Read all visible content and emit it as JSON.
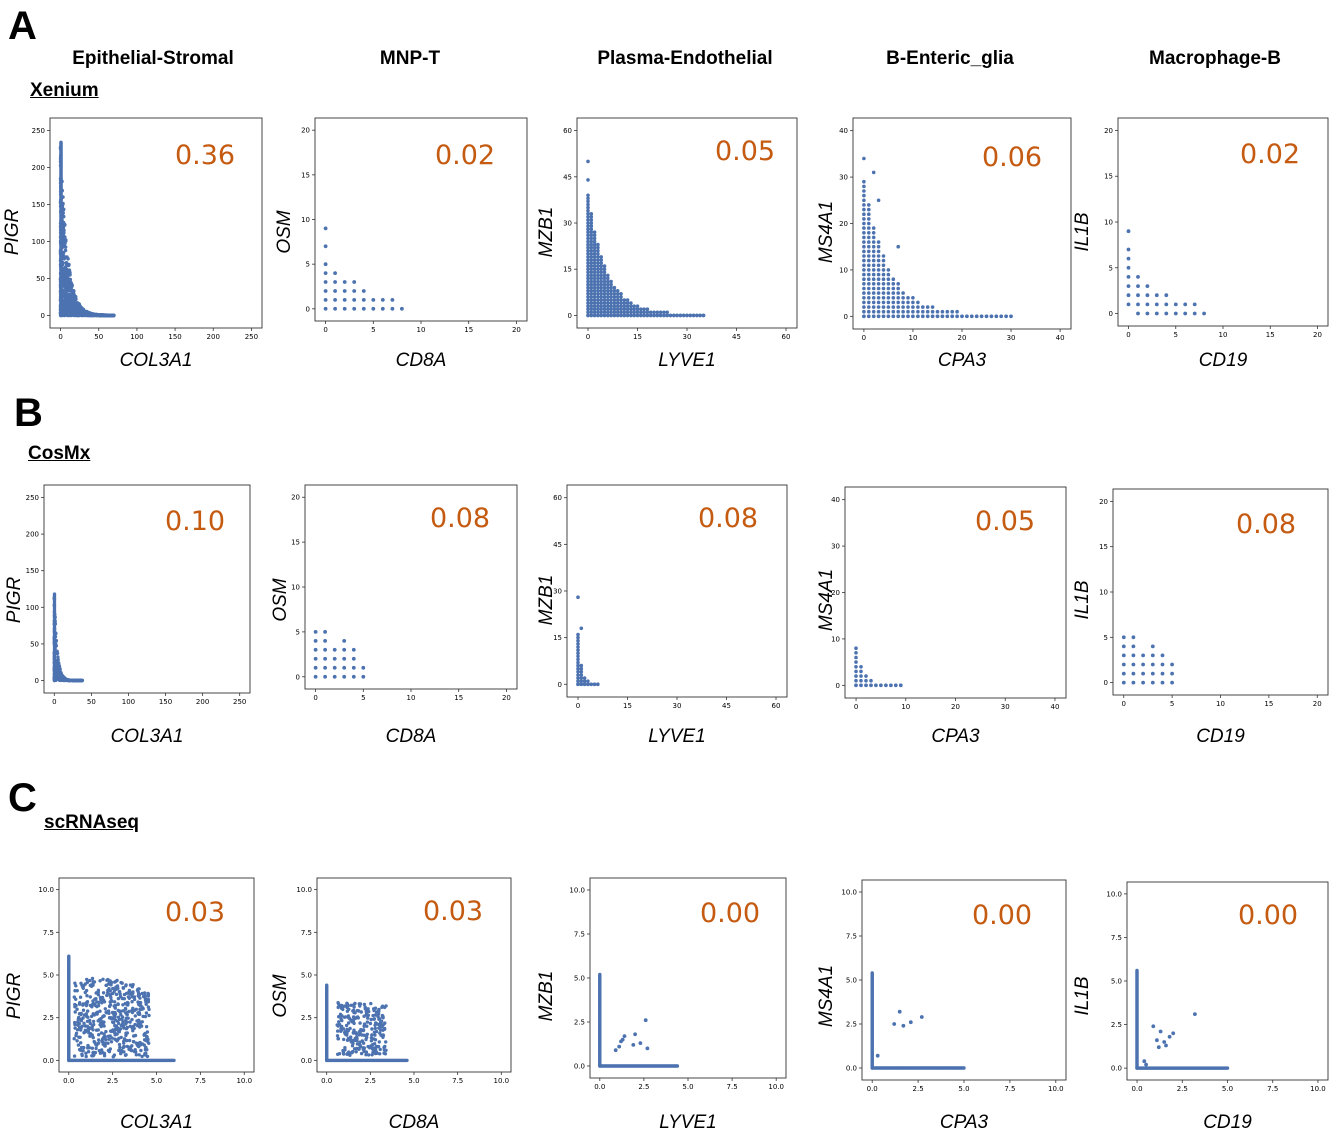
{
  "panel_letters": [
    "A",
    "B",
    "C"
  ],
  "sections": [
    "Xenium",
    "CosMx",
    "scRNAseq"
  ],
  "column_headers": [
    "Epithelial-Stromal",
    "MNP-T",
    "Plasma-Endothelial",
    "B-Enteric_glia",
    "Macrophage-B"
  ],
  "colors": {
    "points": "#4c72b0",
    "correlation": "#c55a11",
    "frame": "#333333"
  },
  "chart_data": [
    {
      "type": "scatter",
      "row": "Xenium",
      "column": "Epithelial-Stromal",
      "xlabel": "COL3A1",
      "ylabel": "PIGR",
      "correlation": "0.36",
      "xlim": [
        0,
        250
      ],
      "ylim": [
        0,
        250
      ],
      "xticks": [
        0,
        50,
        100,
        150,
        200,
        250
      ],
      "yticks": [
        0,
        50,
        100,
        150,
        200,
        250
      ],
      "kind": "xen_big"
    },
    {
      "type": "scatter",
      "row": "Xenium",
      "column": "MNP-T",
      "xlabel": "CD8A",
      "ylabel": "OSM",
      "correlation": "0.02",
      "xlim": [
        0,
        20
      ],
      "ylim": [
        0,
        20
      ],
      "xticks": [
        0,
        5,
        10,
        15,
        20
      ],
      "yticks": [
        0,
        5,
        10,
        15,
        20
      ],
      "kind": "grid",
      "points": [
        [
          0,
          0
        ],
        [
          1,
          0
        ],
        [
          2,
          0
        ],
        [
          3,
          0
        ],
        [
          4,
          0
        ],
        [
          5,
          0
        ],
        [
          6,
          0
        ],
        [
          7,
          0
        ],
        [
          8,
          0
        ],
        [
          0,
          1
        ],
        [
          1,
          1
        ],
        [
          2,
          1
        ],
        [
          3,
          1
        ],
        [
          4,
          1
        ],
        [
          5,
          1
        ],
        [
          6,
          1
        ],
        [
          7,
          1
        ],
        [
          0,
          2
        ],
        [
          1,
          2
        ],
        [
          2,
          2
        ],
        [
          3,
          2
        ],
        [
          4,
          2
        ],
        [
          0,
          3
        ],
        [
          1,
          3
        ],
        [
          2,
          3
        ],
        [
          3,
          3
        ],
        [
          0,
          4
        ],
        [
          1,
          4
        ],
        [
          0,
          5
        ],
        [
          0,
          7
        ],
        [
          0,
          9
        ]
      ]
    },
    {
      "type": "scatter",
      "row": "Xenium",
      "column": "Plasma-Endothelial",
      "xlabel": "LYVE1",
      "ylabel": "MZB1",
      "correlation": "0.05",
      "xlim": [
        0,
        60
      ],
      "ylim": [
        0,
        60
      ],
      "xticks": [
        0,
        15,
        30,
        45,
        60
      ],
      "yticks": [
        0,
        15,
        30,
        45,
        60
      ],
      "kind": "decay",
      "xmax": 35,
      "ymax": 39,
      "extra": [
        [
          0,
          50
        ],
        [
          0,
          44
        ]
      ]
    },
    {
      "type": "scatter",
      "row": "Xenium",
      "column": "B-Enteric_glia",
      "xlabel": "CPA3",
      "ylabel": "MS4A1",
      "correlation": "0.06",
      "xlim": [
        0,
        40
      ],
      "ylim": [
        0,
        40
      ],
      "xticks": [
        0,
        10,
        20,
        30,
        40
      ],
      "yticks": [
        0,
        10,
        20,
        30,
        40
      ],
      "kind": "decay",
      "xmax": 30,
      "ymax": 29,
      "extra": [
        [
          0,
          34
        ],
        [
          2,
          31
        ],
        [
          3,
          25
        ],
        [
          7,
          15
        ]
      ]
    },
    {
      "type": "scatter",
      "row": "Xenium",
      "column": "Macrophage-B",
      "xlabel": "CD19",
      "ylabel": "IL1B",
      "correlation": "0.02",
      "xlim": [
        0,
        20
      ],
      "ylim": [
        0,
        20
      ],
      "xticks": [
        0,
        5,
        10,
        15,
        20
      ],
      "yticks": [
        0,
        5,
        10,
        15,
        20
      ],
      "kind": "grid",
      "points": [
        [
          1,
          0
        ],
        [
          2,
          0
        ],
        [
          3,
          0
        ],
        [
          4,
          0
        ],
        [
          5,
          0
        ],
        [
          6,
          0
        ],
        [
          7,
          0
        ],
        [
          8,
          0
        ],
        [
          0,
          1
        ],
        [
          1,
          1
        ],
        [
          2,
          1
        ],
        [
          3,
          1
        ],
        [
          4,
          1
        ],
        [
          5,
          1
        ],
        [
          6,
          1
        ],
        [
          7,
          1
        ],
        [
          0,
          2
        ],
        [
          1,
          2
        ],
        [
          2,
          2
        ],
        [
          3,
          2
        ],
        [
          4,
          2
        ],
        [
          0,
          3
        ],
        [
          1,
          3
        ],
        [
          2,
          3
        ],
        [
          0,
          4
        ],
        [
          1,
          4
        ],
        [
          0,
          5
        ],
        [
          0,
          6
        ],
        [
          0,
          7
        ],
        [
          0,
          9
        ]
      ]
    },
    {
      "type": "scatter",
      "row": "CosMx",
      "column": "Epithelial-Stromal",
      "xlabel": "COL3A1",
      "ylabel": "PIGR",
      "correlation": "0.10",
      "xlim": [
        0,
        250
      ],
      "ylim": [
        0,
        250
      ],
      "xticks": [
        0,
        50,
        100,
        150,
        200,
        250
      ],
      "yticks": [
        0,
        50,
        100,
        150,
        200,
        250
      ],
      "kind": "cos_big"
    },
    {
      "type": "scatter",
      "row": "CosMx",
      "column": "MNP-T",
      "xlabel": "CD8A",
      "ylabel": "OSM",
      "correlation": "0.08",
      "xlim": [
        0,
        20
      ],
      "ylim": [
        0,
        20
      ],
      "xticks": [
        0,
        5,
        10,
        15,
        20
      ],
      "yticks": [
        0,
        5,
        10,
        15,
        20
      ],
      "kind": "grid",
      "points": [
        [
          0,
          0
        ],
        [
          1,
          0
        ],
        [
          2,
          0
        ],
        [
          3,
          0
        ],
        [
          4,
          0
        ],
        [
          5,
          0
        ],
        [
          0,
          1
        ],
        [
          1,
          1
        ],
        [
          2,
          1
        ],
        [
          3,
          1
        ],
        [
          4,
          1
        ],
        [
          5,
          1
        ],
        [
          0,
          2
        ],
        [
          1,
          2
        ],
        [
          2,
          2
        ],
        [
          3,
          2
        ],
        [
          4,
          2
        ],
        [
          0,
          3
        ],
        [
          1,
          3
        ],
        [
          2,
          3
        ],
        [
          3,
          3
        ],
        [
          4,
          3
        ],
        [
          0,
          4
        ],
        [
          1,
          4
        ],
        [
          3,
          4
        ],
        [
          0,
          5
        ],
        [
          1,
          5
        ]
      ]
    },
    {
      "type": "scatter",
      "row": "CosMx",
      "column": "Plasma-Endothelial",
      "xlabel": "LYVE1",
      "ylabel": "MZB1",
      "correlation": "0.08",
      "xlim": [
        0,
        60
      ],
      "ylim": [
        0,
        60
      ],
      "xticks": [
        0,
        15,
        30,
        45,
        60
      ],
      "yticks": [
        0,
        15,
        30,
        45,
        60
      ],
      "kind": "decay",
      "xmax": 6,
      "ymax": 16,
      "extra": [
        [
          0,
          28
        ],
        [
          1,
          18
        ]
      ]
    },
    {
      "type": "scatter",
      "row": "CosMx",
      "column": "B-Enteric_glia",
      "xlabel": "CPA3",
      "ylabel": "MS4A1",
      "correlation": "0.05",
      "xlim": [
        0,
        40
      ],
      "ylim": [
        0,
        40
      ],
      "xticks": [
        0,
        10,
        20,
        30,
        40
      ],
      "yticks": [
        0,
        10,
        20,
        30,
        40
      ],
      "kind": "decay",
      "xmax": 9,
      "ymax": 8,
      "extra": []
    },
    {
      "type": "scatter",
      "row": "CosMx",
      "column": "Macrophage-B",
      "xlabel": "CD19",
      "ylabel": "IL1B",
      "correlation": "0.08",
      "xlim": [
        0,
        20
      ],
      "ylim": [
        0,
        20
      ],
      "xticks": [
        0,
        5,
        10,
        15,
        20
      ],
      "yticks": [
        0,
        5,
        10,
        15,
        20
      ],
      "kind": "grid",
      "points": [
        [
          0,
          0
        ],
        [
          1,
          0
        ],
        [
          2,
          0
        ],
        [
          3,
          0
        ],
        [
          4,
          0
        ],
        [
          5,
          0
        ],
        [
          0,
          1
        ],
        [
          1,
          1
        ],
        [
          2,
          1
        ],
        [
          3,
          1
        ],
        [
          4,
          1
        ],
        [
          5,
          1
        ],
        [
          0,
          2
        ],
        [
          1,
          2
        ],
        [
          2,
          2
        ],
        [
          3,
          2
        ],
        [
          4,
          2
        ],
        [
          5,
          2
        ],
        [
          0,
          3
        ],
        [
          1,
          3
        ],
        [
          2,
          3
        ],
        [
          3,
          3
        ],
        [
          4,
          3
        ],
        [
          0,
          4
        ],
        [
          1,
          4
        ],
        [
          3,
          4
        ],
        [
          0,
          5
        ],
        [
          1,
          5
        ]
      ]
    },
    {
      "type": "scatter",
      "row": "scRNAseq",
      "column": "Epithelial-Stromal",
      "xlabel": "COL3A1",
      "ylabel": "PIGR",
      "correlation": "0.03",
      "xlim": [
        0,
        10
      ],
      "ylim": [
        0,
        10
      ],
      "xticks": [
        "0.0",
        "2.5",
        "5.0",
        "7.5",
        "10.0"
      ],
      "yticks": [
        "0.0",
        "2.5",
        "5.0",
        "7.5",
        "10.0"
      ],
      "kind": "sc_cloud",
      "xmax": 6.0,
      "ymax": 6.1,
      "cloud": [
        0.3,
        4.6,
        0.2,
        4.8
      ],
      "n": 520
    },
    {
      "type": "scatter",
      "row": "scRNAseq",
      "column": "MNP-T",
      "xlabel": "CD8A",
      "ylabel": "OSM",
      "correlation": "0.03",
      "xlim": [
        0,
        10
      ],
      "ylim": [
        0,
        10
      ],
      "xticks": [
        "0.0",
        "2.5",
        "5.0",
        "7.5",
        "10.0"
      ],
      "yticks": [
        "0.0",
        "2.5",
        "5.0",
        "7.5",
        "10.0"
      ],
      "kind": "sc_cloud",
      "xmax": 4.6,
      "ymax": 4.4,
      "cloud": [
        0.6,
        3.4,
        0.3,
        3.4
      ],
      "n": 260
    },
    {
      "type": "scatter",
      "row": "scRNAseq",
      "column": "Plasma-Endothelial",
      "xlabel": "LYVE1",
      "ylabel": "MZB1",
      "correlation": "0.00",
      "xlim": [
        0,
        10
      ],
      "ylim": [
        0,
        10
      ],
      "xticks": [
        "0.0",
        "2.5",
        "5.0",
        "7.5",
        "10.0"
      ],
      "yticks": [
        "0.0",
        "2.5",
        "5.0",
        "7.5",
        "10.0"
      ],
      "kind": "sc_sparse",
      "xmax": 4.4,
      "ymax": 5.2,
      "points": [
        [
          0.9,
          0.9
        ],
        [
          1.1,
          1.1
        ],
        [
          1.3,
          1.5
        ],
        [
          1.4,
          1.7
        ],
        [
          2.0,
          1.8
        ],
        [
          2.3,
          1.3
        ],
        [
          2.6,
          2.6
        ],
        [
          2.7,
          1.0
        ],
        [
          1.9,
          1.2
        ],
        [
          1.2,
          1.4
        ]
      ]
    },
    {
      "type": "scatter",
      "row": "scRNAseq",
      "column": "B-Enteric_glia",
      "xlabel": "CPA3",
      "ylabel": "MS4A1",
      "correlation": "0.00",
      "xlim": [
        0,
        10
      ],
      "ylim": [
        0,
        10
      ],
      "xticks": [
        "0.0",
        "2.5",
        "5.0",
        "7.5",
        "10.0"
      ],
      "yticks": [
        "0.0",
        "2.5",
        "5.0",
        "7.5",
        "10.0"
      ],
      "kind": "sc_sparse",
      "xmax": 5.0,
      "ymax": 5.4,
      "points": [
        [
          0.3,
          0.7
        ],
        [
          1.2,
          2.5
        ],
        [
          1.5,
          3.2
        ],
        [
          1.7,
          2.4
        ],
        [
          2.1,
          2.6
        ],
        [
          2.7,
          2.9
        ]
      ]
    },
    {
      "type": "scatter",
      "row": "scRNAseq",
      "column": "Macrophage-B",
      "xlabel": "CD19",
      "ylabel": "IL1B",
      "correlation": "0.00",
      "xlim": [
        0,
        10
      ],
      "ylim": [
        0,
        10
      ],
      "xticks": [
        "0.0",
        "2.5",
        "5.0",
        "7.5",
        "10.0"
      ],
      "yticks": [
        "0.0",
        "2.5",
        "5.0",
        "7.5",
        "10.0"
      ],
      "kind": "sc_sparse",
      "xmax": 5.0,
      "ymax": 5.6,
      "points": [
        [
          0.4,
          0.4
        ],
        [
          0.5,
          0.2
        ],
        [
          0.9,
          2.4
        ],
        [
          1.2,
          1.2
        ],
        [
          1.3,
          2.1
        ],
        [
          1.5,
          1.5
        ],
        [
          1.6,
          1.3
        ],
        [
          1.8,
          1.8
        ],
        [
          2.0,
          2.0
        ],
        [
          3.2,
          3.1
        ],
        [
          1.1,
          1.6
        ]
      ]
    }
  ]
}
